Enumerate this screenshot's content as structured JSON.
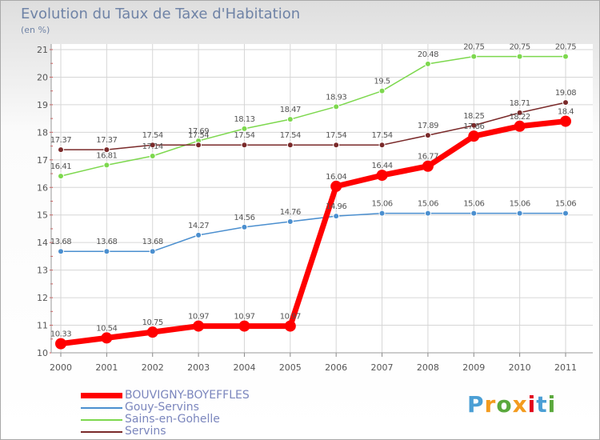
{
  "title": "Evolution du Taux de Taxe d'Habitation",
  "subtitle": "(en %)",
  "brand": {
    "text": "Proxiti",
    "letter_colors": [
      "#4b9fd5",
      "#f39b1f",
      "#5aa83c",
      "#f39b1f",
      "#e2001a",
      "#4b9fd5",
      "#5aa83c"
    ]
  },
  "chart_data": {
    "type": "line",
    "x": [
      2000,
      2001,
      2002,
      2003,
      2004,
      2005,
      2006,
      2007,
      2008,
      2009,
      2010,
      2011
    ],
    "ylim": [
      10,
      21
    ],
    "yticks": [
      10,
      11,
      12,
      13,
      14,
      15,
      16,
      17,
      18,
      19,
      20,
      21
    ],
    "grid": true,
    "legend_position": "bottom-left",
    "series": [
      {
        "name": "BOUVIGNY-BOYEFFLES",
        "color": "#ff0000",
        "values": [
          10.33,
          10.54,
          10.75,
          10.97,
          10.97,
          10.97,
          16.04,
          16.44,
          16.77,
          17.86,
          18.22,
          18.4
        ],
        "labels": [
          "10.33",
          "10.54",
          "10.75",
          "10.97",
          "10.97",
          "10.97",
          "16.04",
          "16.44",
          "16.77",
          "17.86",
          "18.22",
          "18.4"
        ]
      },
      {
        "name": "Gouy-Servins",
        "color": "#4b8fcf",
        "values": [
          13.68,
          13.68,
          13.68,
          14.27,
          14.56,
          14.76,
          14.96,
          15.06,
          15.06,
          15.06,
          15.06,
          15.06
        ],
        "labels": [
          "13.68",
          "13.68",
          "13.68",
          "14.27",
          "14.56",
          "14.76",
          "14.96",
          "15.06",
          "15.06",
          "15.06",
          "15.06",
          "15.06"
        ]
      },
      {
        "name": "Sains-en-Gohelle",
        "color": "#7dd84e",
        "values": [
          16.41,
          16.81,
          17.14,
          17.69,
          18.13,
          18.47,
          18.93,
          19.5,
          20.48,
          20.75,
          20.75,
          20.75
        ],
        "labels": [
          "16.41",
          "16.81",
          "17.14",
          "17.69",
          "18.13",
          "18.47",
          "18.93",
          "19.5",
          "20.48",
          "20.75",
          "20.75",
          "20.75"
        ]
      },
      {
        "name": "Servins",
        "color": "#7a2a2a",
        "values": [
          17.37,
          17.37,
          17.54,
          17.54,
          17.54,
          17.54,
          17.54,
          17.54,
          17.89,
          18.25,
          18.71,
          19.08
        ],
        "labels": [
          "17.37",
          "17.37",
          "17.54",
          "17.54",
          "17.54",
          "17.54",
          "17.54",
          "17.54",
          "17.89",
          "18.25",
          "18.71",
          "19.08"
        ]
      }
    ]
  }
}
